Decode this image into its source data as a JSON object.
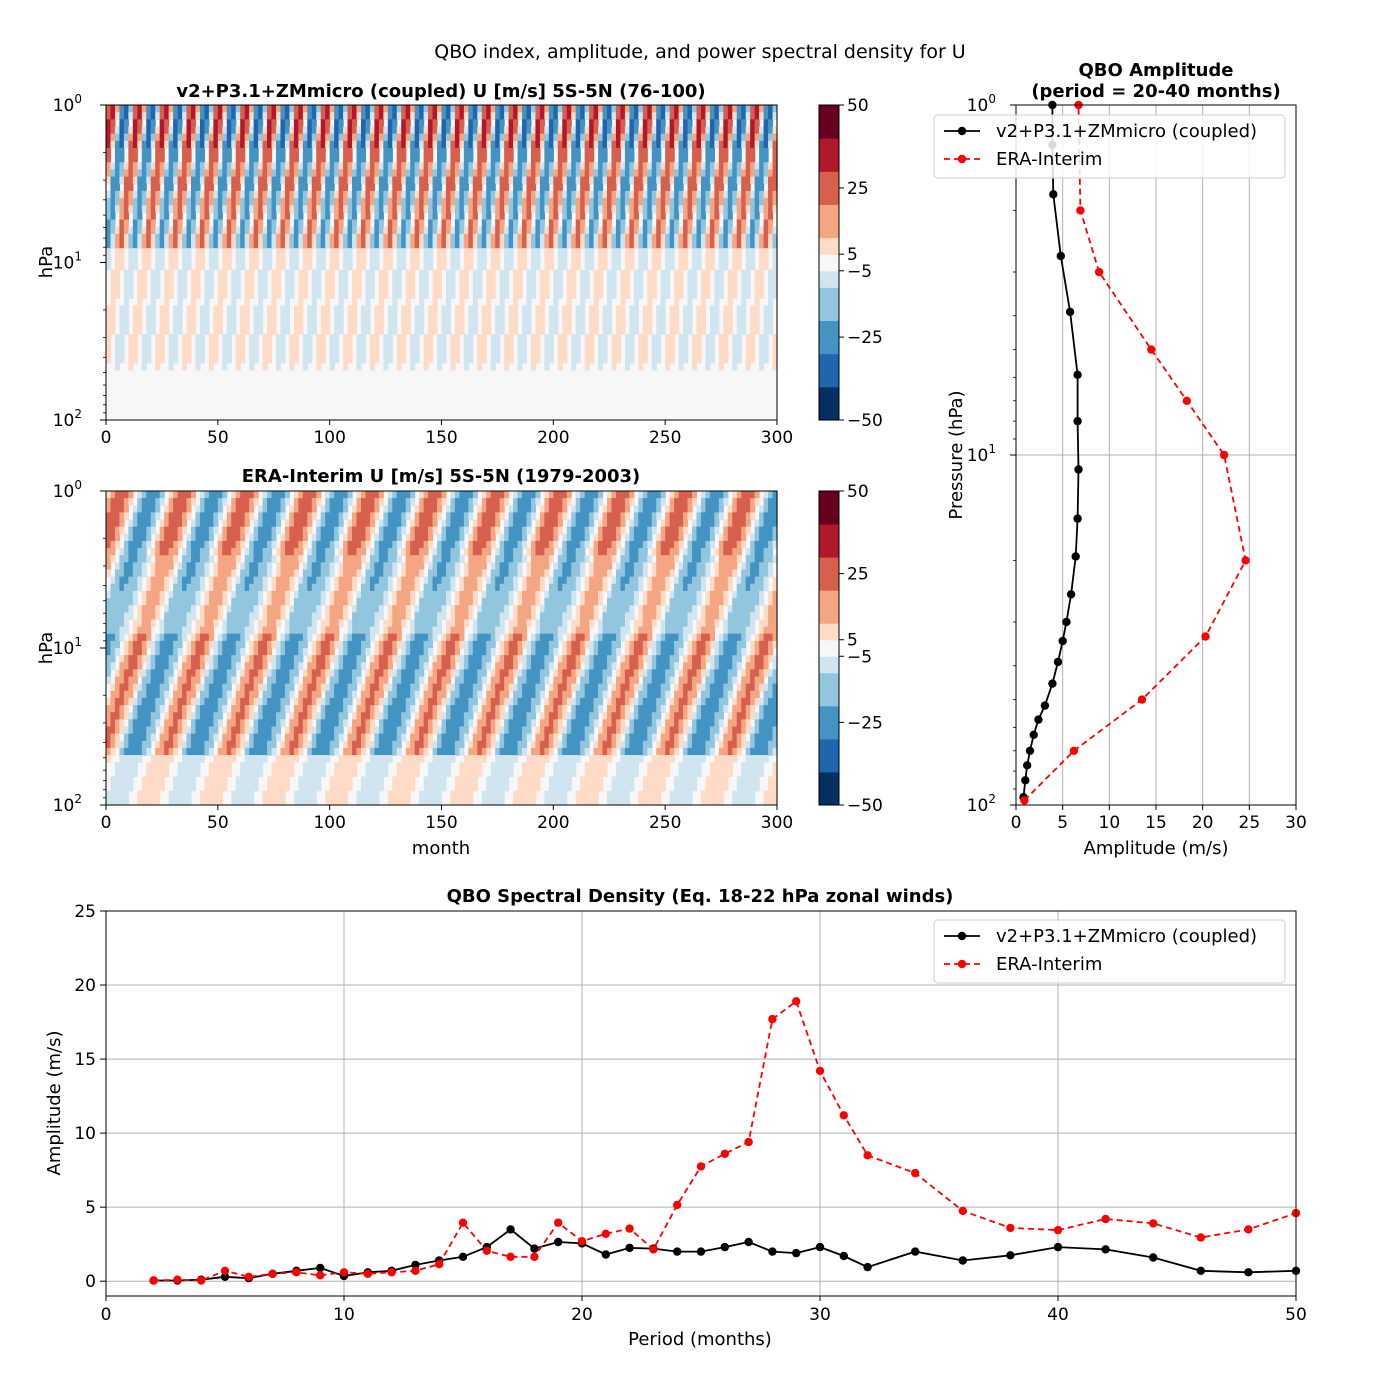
{
  "figure": {
    "suptitle": "QBO index, amplitude, and power spectral density for U"
  },
  "colors": {
    "model": "#000000",
    "era": "#ff0000",
    "grid": "#b0b0b0",
    "diverging": [
      "#053061",
      "#2166ac",
      "#4393c3",
      "#92c5de",
      "#d1e5f0",
      "#f7f7f7",
      "#fddbc7",
      "#f4a582",
      "#d6604d",
      "#b2182b",
      "#67001f"
    ]
  },
  "hovmoller": [
    {
      "title": "v2+P3.1+ZMmicro (coupled) U [m/s] 5S-5N (76-100)",
      "ylabel": "hPa",
      "xlabel": "",
      "xticks": [
        "0",
        "50",
        "100",
        "150",
        "200",
        "250",
        "300"
      ],
      "yticks": [
        {
          "base": "10",
          "exp": "0"
        },
        {
          "base": "10",
          "exp": "1"
        },
        {
          "base": "10",
          "exp": "2"
        }
      ],
      "colorbar_ticks": [
        "50",
        "25",
        "5",
        "−5",
        "−25",
        "−50"
      ],
      "colorbar_levels": [
        -50,
        -45,
        -40,
        -35,
        -30,
        -25,
        -20,
        -15,
        -10,
        -5,
        5,
        10,
        15,
        20,
        25,
        30,
        35,
        40,
        45,
        50
      ],
      "pattern": {
        "period_months": 12,
        "high_amp": 38,
        "mid_amp": 9,
        "low_amp": 5
      }
    },
    {
      "title": "ERA-Interim U [m/s] 5S-5N (1979-2003)",
      "ylabel": "hPa",
      "xlabel": "month",
      "xticks": [
        "0",
        "50",
        "100",
        "150",
        "200",
        "250",
        "300"
      ],
      "yticks": [
        {
          "base": "10",
          "exp": "0"
        },
        {
          "base": "10",
          "exp": "1"
        },
        {
          "base": "10",
          "exp": "2"
        }
      ],
      "colorbar_ticks": [
        "50",
        "25",
        "5",
        "−5",
        "−25",
        "−50"
      ],
      "colorbar_levels": [
        -50,
        -45,
        -40,
        -35,
        -30,
        -25,
        -20,
        -15,
        -10,
        -5,
        5,
        10,
        15,
        20,
        25,
        30,
        35,
        40,
        45,
        50
      ],
      "pattern": {
        "period_months": 28,
        "high_amp": 30,
        "mid_amp": 28,
        "low_amp": 12
      }
    }
  ],
  "chart_data": [
    {
      "type": "line",
      "title": "QBO Amplitude\n(period = 20-40 months)",
      "xlabel": "Amplitude (m/s)",
      "ylabel": "Pressure (hPa)",
      "xlim": [
        0,
        30
      ],
      "ylim_hPa": [
        100,
        1
      ],
      "yscale": "log",
      "xticks": [
        "0",
        "5",
        "10",
        "15",
        "20",
        "25",
        "30"
      ],
      "yticks": [
        {
          "base": "10",
          "exp": "0"
        },
        {
          "base": "10",
          "exp": "1"
        },
        {
          "base": "10",
          "exp": "2"
        }
      ],
      "legend": "upper-right",
      "series": [
        {
          "name": "v2+P3.1+ZMmicro (coupled)",
          "style": "solid",
          "points": [
            [
              0.8,
              95
            ],
            [
              1.0,
              85
            ],
            [
              1.2,
              77
            ],
            [
              1.5,
              70
            ],
            [
              1.9,
              63
            ],
            [
              2.4,
              57
            ],
            [
              3.1,
              52
            ],
            [
              3.9,
              45
            ],
            [
              4.5,
              39
            ],
            [
              5.0,
              34
            ],
            [
              5.4,
              30
            ],
            [
              5.9,
              25
            ],
            [
              6.4,
              19.5
            ],
            [
              6.6,
              15.2
            ],
            [
              6.7,
              11
            ],
            [
              6.6,
              8
            ],
            [
              6.6,
              5.9
            ],
            [
              5.8,
              3.9
            ],
            [
              4.8,
              2.7
            ],
            [
              4.0,
              1.8
            ],
            [
              3.9,
              1.3
            ],
            [
              3.9,
              1.0
            ]
          ]
        },
        {
          "name": "ERA-Interim",
          "style": "dashed",
          "points": [
            [
              0.9,
              97
            ],
            [
              6.2,
              70
            ],
            [
              13.5,
              50
            ],
            [
              20.3,
              33
            ],
            [
              24.6,
              20
            ],
            [
              22.3,
              10
            ],
            [
              18.3,
              7.0
            ],
            [
              14.5,
              5.0
            ],
            [
              8.9,
              3.0
            ],
            [
              6.9,
              2.0
            ],
            [
              6.7,
              1.0
            ]
          ]
        }
      ]
    },
    {
      "type": "line",
      "title": "QBO Spectral Density (Eq. 18-22 hPa zonal winds)",
      "xlabel": "Period (months)",
      "ylabel": "Amplitude (m/s)",
      "xlim": [
        0,
        50
      ],
      "ylim": [
        -1,
        25
      ],
      "xticks": [
        "0",
        "10",
        "20",
        "30",
        "40",
        "50"
      ],
      "yticks": [
        "0",
        "5",
        "10",
        "15",
        "20",
        "25"
      ],
      "legend": "upper-right",
      "series": [
        {
          "name": "v2+P3.1+ZMmicro (coupled)",
          "style": "solid",
          "x": [
            2,
            3,
            4,
            5,
            6,
            7,
            8,
            9,
            10,
            11,
            12,
            13,
            14,
            15,
            16,
            17,
            18,
            19,
            20,
            21,
            22,
            23,
            24,
            25,
            26,
            27,
            28,
            29,
            30,
            31,
            32,
            34,
            36,
            38,
            40,
            42,
            44,
            46,
            48,
            50
          ],
          "y": [
            0.05,
            0.05,
            0.1,
            0.3,
            0.2,
            0.5,
            0.7,
            0.9,
            0.35,
            0.6,
            0.7,
            1.1,
            1.4,
            1.65,
            2.3,
            3.5,
            2.2,
            2.65,
            2.55,
            1.8,
            2.25,
            2.2,
            2.0,
            2.0,
            2.3,
            2.65,
            2.0,
            1.9,
            2.3,
            1.7,
            0.95,
            2.0,
            1.4,
            1.75,
            2.3,
            2.15,
            1.6,
            0.7,
            0.6,
            0.7
          ]
        },
        {
          "name": "ERA-Interim",
          "style": "dashed",
          "x": [
            2,
            3,
            4,
            5,
            6,
            7,
            8,
            9,
            10,
            11,
            12,
            13,
            14,
            15,
            16,
            17,
            18,
            19,
            20,
            21,
            22,
            23,
            24,
            25,
            26,
            27,
            28,
            29,
            30,
            31,
            32,
            34,
            36,
            38,
            40,
            42,
            44,
            46,
            48,
            50
          ],
          "y": [
            0.05,
            0.1,
            0.05,
            0.7,
            0.3,
            0.5,
            0.6,
            0.4,
            0.6,
            0.5,
            0.6,
            0.7,
            1.15,
            3.95,
            2.05,
            1.65,
            1.65,
            3.95,
            2.7,
            3.2,
            3.55,
            2.15,
            5.15,
            7.75,
            8.6,
            9.4,
            17.7,
            18.9,
            14.2,
            11.2,
            8.5,
            7.3,
            4.75,
            3.6,
            3.45,
            4.2,
            3.9,
            2.95,
            3.5,
            4.6
          ]
        }
      ]
    }
  ]
}
